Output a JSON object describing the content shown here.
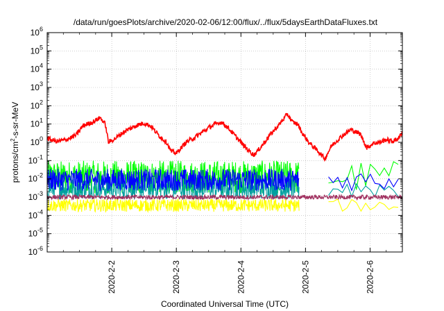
{
  "chart_data": {
    "type": "line",
    "title": "/data/run/goesPlots/archive/2020-02-06/12:00/flux/../flux/5daysEarthDataFluxes.txt",
    "xlabel": "Coordinated Universal Time (UTC)",
    "ylabel_base": "protons/cm",
    "ylabel_sup": "2",
    "ylabel_tail": "-s-sr-MeV",
    "yscale": "log",
    "ylim_exp": [
      -6,
      6
    ],
    "y_tick_base": "10",
    "y_tick_exponents": [
      "6",
      "5",
      "4",
      "3",
      "2",
      "1",
      "0",
      "-1",
      "-2",
      "-3",
      "-4",
      "-5",
      "-6"
    ],
    "xlim_days": [
      1.0,
      6.5
    ],
    "x_ticks": [
      {
        "label": "2020-2-2",
        "day": 2
      },
      {
        "label": "2020-2-3",
        "day": 3
      },
      {
        "label": "2020-2-4",
        "day": 4
      },
      {
        "label": "2020-2-5",
        "day": 5
      },
      {
        "label": "2020-2-6",
        "day": 6
      }
    ],
    "grid": true,
    "series": [
      {
        "color": "#00ff00",
        "kind": "noise",
        "base_exp": -1.9,
        "amp_exp": 0.9,
        "gaps": [
          [
            4.9,
            5.35
          ]
        ],
        "sparse_after": 5.35
      },
      {
        "color": "#009f9f",
        "kind": "noise",
        "base_exp": -2.5,
        "amp_exp": 0.6,
        "gaps": [
          [
            4.9,
            5.35
          ]
        ],
        "sparse_after": 5.35
      },
      {
        "color": "#0000ff",
        "kind": "noise",
        "base_exp": -2.05,
        "amp_exp": 0.6,
        "gaps": [
          [
            4.9,
            5.35
          ]
        ],
        "sparse_after": 5.35
      },
      {
        "color": "#ffff00",
        "kind": "noise",
        "base_exp": -3.45,
        "amp_exp": 0.35,
        "gaps": [
          [
            4.9,
            5.35
          ]
        ],
        "sparse_after": 5.35
      },
      {
        "color": "#a0305f",
        "kind": "noise",
        "base_exp": -3.0,
        "amp_exp": 0.12,
        "gaps": [],
        "sparse_after": 6.6
      },
      {
        "color": "#ff0000",
        "kind": "curve",
        "points": [
          [
            1.0,
            0.2
          ],
          [
            1.15,
            0.05
          ],
          [
            1.3,
            0.15
          ],
          [
            1.45,
            0.4
          ],
          [
            1.55,
            0.9
          ],
          [
            1.7,
            1.1
          ],
          [
            1.82,
            1.35
          ],
          [
            1.9,
            1.0
          ],
          [
            1.95,
            0.0
          ],
          [
            2.05,
            0.2
          ],
          [
            2.2,
            0.6
          ],
          [
            2.4,
            0.95
          ],
          [
            2.5,
            1.05
          ],
          [
            2.6,
            0.9
          ],
          [
            2.75,
            0.3
          ],
          [
            2.85,
            0.0
          ],
          [
            2.92,
            -0.5
          ],
          [
            3.0,
            -0.6
          ],
          [
            3.15,
            0.0
          ],
          [
            3.3,
            0.3
          ],
          [
            3.5,
            0.8
          ],
          [
            3.6,
            1.0
          ],
          [
            3.7,
            1.1
          ],
          [
            3.8,
            0.8
          ],
          [
            3.9,
            0.4
          ],
          [
            4.05,
            -0.2
          ],
          [
            4.2,
            -0.7
          ],
          [
            4.3,
            -0.3
          ],
          [
            4.45,
            0.4
          ],
          [
            4.6,
            1.0
          ],
          [
            4.72,
            1.55
          ],
          [
            4.8,
            1.1
          ],
          [
            4.88,
            1.0
          ],
          [
            4.95,
            0.5
          ],
          [
            5.05,
            0.0
          ],
          [
            5.2,
            -0.5
          ],
          [
            5.3,
            -0.9
          ],
          [
            5.4,
            -0.2
          ],
          [
            5.55,
            0.3
          ],
          [
            5.7,
            0.7
          ],
          [
            5.85,
            0.45
          ],
          [
            5.95,
            -0.3
          ],
          [
            6.05,
            -0.05
          ],
          [
            6.15,
            0.0
          ],
          [
            6.25,
            0.15
          ],
          [
            6.35,
            0.05
          ],
          [
            6.45,
            0.25
          ],
          [
            6.5,
            0.6
          ]
        ]
      }
    ]
  }
}
